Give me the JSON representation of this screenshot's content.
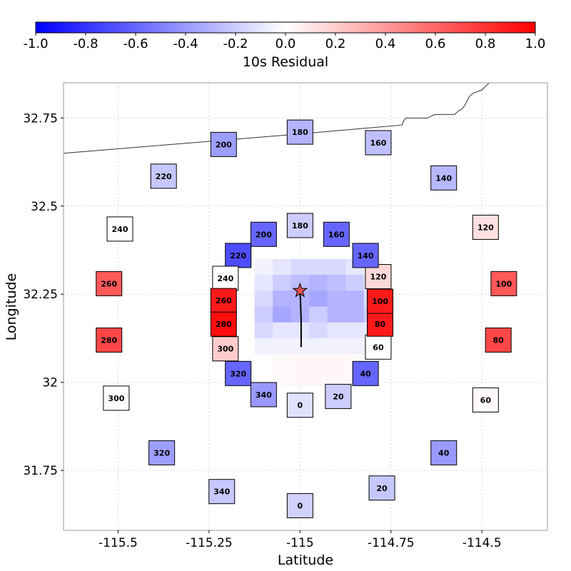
{
  "chart_data": {
    "type": "heatmap",
    "colorbar": {
      "label": "10s Residual",
      "range": [
        -1.0,
        1.0
      ],
      "ticks": [
        "-1.0",
        "-0.8",
        "-0.6",
        "-0.4",
        "-0.2",
        "0.0",
        "0.2",
        "0.4",
        "0.6",
        "0.8",
        "1.0"
      ],
      "colors": {
        "low": "#0000ff",
        "mid": "#ffffff",
        "high": "#ff0000"
      }
    },
    "xlabel": "Latitude",
    "ylabel": "Longitude",
    "xlim": [
      -115.65,
      -114.32
    ],
    "ylim": [
      31.58,
      32.85
    ],
    "xticks": [
      {
        "v": -115.5,
        "label": "-115.5"
      },
      {
        "v": -115.25,
        "label": "-115.25"
      },
      {
        "v": -115.0,
        "label": "-115"
      },
      {
        "v": -114.75,
        "label": "-114.75"
      },
      {
        "v": -114.5,
        "label": "-114.5"
      }
    ],
    "yticks": [
      {
        "v": 31.75,
        "label": "31.75"
      },
      {
        "v": 32.0,
        "label": "32"
      },
      {
        "v": 32.25,
        "label": "32.25"
      },
      {
        "v": 32.5,
        "label": "32.5"
      },
      {
        "v": 32.75,
        "label": "32.75"
      }
    ],
    "grid": true,
    "epicenter": {
      "lon": -115.0,
      "lat": 32.26
    },
    "fault_trace": [
      [
        -115.0,
        32.26
      ],
      [
        -114.997,
        32.18
      ],
      [
        -114.997,
        32.1
      ]
    ],
    "border": [
      [
        -115.65,
        32.65
      ],
      [
        -115.0,
        32.705
      ],
      [
        -114.72,
        32.73
      ],
      [
        -114.715,
        32.742
      ],
      [
        -114.71,
        32.75
      ],
      [
        -114.65,
        32.75
      ],
      [
        -114.63,
        32.76
      ],
      [
        -114.575,
        32.76
      ],
      [
        -114.565,
        32.77
      ],
      [
        -114.555,
        32.775
      ],
      [
        -114.545,
        32.79
      ],
      [
        -114.535,
        32.81
      ],
      [
        -114.525,
        32.82
      ],
      [
        -114.5,
        32.83
      ],
      [
        -114.48,
        32.85
      ]
    ],
    "stations_outer": [
      {
        "label": "0",
        "lon": -115.0,
        "lat": 31.65,
        "value": -0.18
      },
      {
        "label": "20",
        "lon": -114.775,
        "lat": 31.7,
        "value": -0.22
      },
      {
        "label": "40",
        "lon": -114.605,
        "lat": 31.8,
        "value": -0.4
      },
      {
        "label": "60",
        "lon": -114.49,
        "lat": 31.95,
        "value": 0.02
      },
      {
        "label": "80",
        "lon": -114.455,
        "lat": 32.12,
        "value": 0.72
      },
      {
        "label": "100",
        "lon": -114.44,
        "lat": 32.28,
        "value": 0.65
      },
      {
        "label": "120",
        "lon": -114.49,
        "lat": 32.44,
        "value": 0.12
      },
      {
        "label": "140",
        "lon": -114.605,
        "lat": 32.58,
        "value": -0.28
      },
      {
        "label": "160",
        "lon": -114.785,
        "lat": 32.68,
        "value": -0.25
      },
      {
        "label": "180",
        "lon": -115.0,
        "lat": 32.71,
        "value": -0.3
      },
      {
        "label": "200",
        "lon": -115.21,
        "lat": 32.675,
        "value": -0.38
      },
      {
        "label": "220",
        "lon": -115.375,
        "lat": 32.585,
        "value": -0.22
      },
      {
        "label": "240",
        "lon": -115.495,
        "lat": 32.435,
        "value": 0.0
      },
      {
        "label": "260",
        "lon": -115.525,
        "lat": 32.28,
        "value": 0.65
      },
      {
        "label": "280",
        "lon": -115.525,
        "lat": 32.12,
        "value": 0.72
      },
      {
        "label": "300",
        "lon": -115.505,
        "lat": 31.955,
        "value": 0.0
      },
      {
        "label": "320",
        "lon": -115.38,
        "lat": 31.8,
        "value": -0.38
      },
      {
        "label": "340",
        "lon": -115.215,
        "lat": 31.69,
        "value": -0.22
      }
    ],
    "stations_inner": [
      {
        "label": "0",
        "lon": -115.0,
        "lat": 31.935,
        "value": -0.12
      },
      {
        "label": "20",
        "lon": -114.895,
        "lat": 31.96,
        "value": -0.2
      },
      {
        "label": "40",
        "lon": -114.82,
        "lat": 32.025,
        "value": -0.6
      },
      {
        "label": "60",
        "lon": -114.785,
        "lat": 32.1,
        "value": 0.0
      },
      {
        "label": "80",
        "lon": -114.78,
        "lat": 32.165,
        "value": 0.9
      },
      {
        "label": "100",
        "lon": -114.78,
        "lat": 32.23,
        "value": 0.9
      },
      {
        "label": "120",
        "lon": -114.785,
        "lat": 32.3,
        "value": 0.15
      },
      {
        "label": "140",
        "lon": -114.82,
        "lat": 32.36,
        "value": -0.6
      },
      {
        "label": "160",
        "lon": -114.9,
        "lat": 32.42,
        "value": -0.6
      },
      {
        "label": "180",
        "lon": -115.0,
        "lat": 32.445,
        "value": -0.2
      },
      {
        "label": "200",
        "lon": -115.1,
        "lat": 32.42,
        "value": -0.6
      },
      {
        "label": "220",
        "lon": -115.17,
        "lat": 32.36,
        "value": -0.7
      },
      {
        "label": "240",
        "lon": -115.205,
        "lat": 32.295,
        "value": 0.0
      },
      {
        "label": "260",
        "lon": -115.21,
        "lat": 32.232,
        "value": 0.9
      },
      {
        "label": "280",
        "lon": -115.21,
        "lat": 32.165,
        "value": 0.95
      },
      {
        "label": "300",
        "lon": -115.205,
        "lat": 32.095,
        "value": 0.2
      },
      {
        "label": "320",
        "lon": -115.17,
        "lat": 32.025,
        "value": -0.6
      },
      {
        "label": "340",
        "lon": -115.1,
        "lat": 31.965,
        "value": -0.4
      }
    ],
    "grid_residual": {
      "lon_min": -115.125,
      "lat_min": 31.99,
      "dlon": 0.05,
      "dlat": 0.045,
      "rows_top_to_bottom": [
        [
          -0.05,
          -0.1,
          -0.15,
          -0.15,
          -0.15,
          -0.1,
          -0.05
        ],
        [
          -0.1,
          -0.2,
          -0.25,
          -0.3,
          -0.25,
          -0.2,
          -0.1
        ],
        [
          -0.15,
          -0.3,
          -0.3,
          -0.35,
          -0.3,
          -0.3,
          -0.15
        ],
        [
          -0.2,
          -0.35,
          -0.3,
          -0.2,
          -0.3,
          -0.3,
          -0.2
        ],
        [
          -0.15,
          -0.1,
          -0.1,
          -0.15,
          -0.1,
          -0.1,
          -0.1
        ],
        [
          -0.05,
          -0.05,
          -0.05,
          -0.05,
          -0.05,
          -0.05,
          -0.05
        ],
        [
          0.0,
          0.02,
          0.03,
          0.03,
          0.03,
          0.02,
          0.0
        ],
        [
          0.0,
          0.02,
          0.03,
          0.03,
          0.03,
          0.02,
          0.0
        ]
      ]
    }
  }
}
